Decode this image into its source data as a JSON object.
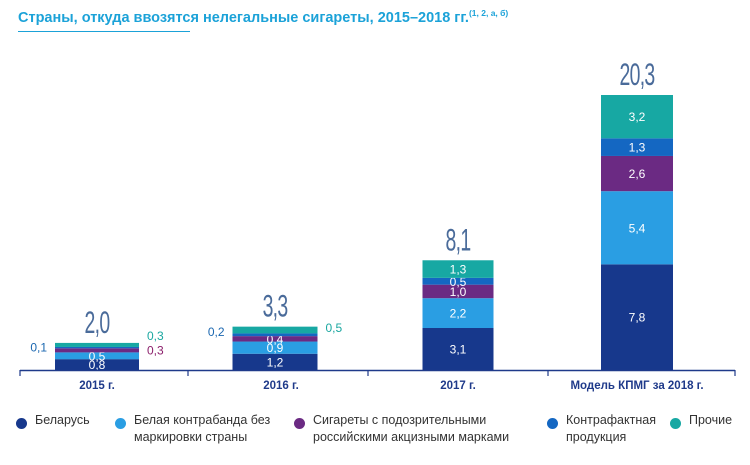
{
  "title": "Страны, откуда ввозятся нелегальные сигареты, 2015–2018 гг.",
  "title_refs": "(1, 2, а, б)",
  "colors": {
    "title": "#1ba2d8",
    "axis": "#1f3a8a",
    "total_label": "#4a6b9a",
    "teal_label": "#1aa7a0",
    "purple_label": "#8b1f6b",
    "blue_label": "#1b67b0"
  },
  "chart_data": {
    "type": "bar",
    "stacked": true,
    "categories": [
      "2015 г.",
      "2016 г.",
      "2017 г.",
      "Модель КПМГ за 2018 г."
    ],
    "totals": [
      "2,0",
      "3,3",
      "8,1",
      "20,3"
    ],
    "total_values": [
      2.0,
      3.3,
      8.1,
      20.3
    ],
    "series": [
      {
        "name": "Беларусь",
        "color": "#17388c",
        "values": [
          0.8,
          1.2,
          3.1,
          7.8
        ],
        "labels": [
          "0,8",
          "1,2",
          "3,1",
          "7,8"
        ]
      },
      {
        "name": "Белая контрабанда без маркировки страны",
        "color": "#2a9ee3",
        "values": [
          0.5,
          0.9,
          2.2,
          5.4
        ],
        "labels": [
          "0,5",
          "0,9",
          "2,2",
          "5,4"
        ]
      },
      {
        "name": "Сигареты с подозрительными российскими акцизными марками",
        "color": "#6b2a83",
        "values": [
          0.3,
          0.4,
          1.0,
          2.6
        ],
        "labels": [
          "0,3",
          "0,4",
          "1,0",
          "2,6"
        ]
      },
      {
        "name": "Контрафактная продукция",
        "color": "#1467c2",
        "values": [
          0.1,
          0.2,
          0.5,
          1.3
        ],
        "labels": [
          "0,1",
          "0,2",
          "0,5",
          "1,3"
        ]
      },
      {
        "name": "Прочие",
        "color": "#17a8a3",
        "values": [
          0.3,
          0.5,
          1.3,
          3.2
        ],
        "labels": [
          "0,3",
          "0,5",
          "1,3",
          "3,2"
        ]
      }
    ],
    "ylim": [
      0,
      20.3
    ],
    "grid": false,
    "legend_position": "bottom"
  },
  "legend": [
    {
      "label": "Беларусь",
      "color": "#17388c"
    },
    {
      "label": "Белая контрабанда без\nмаркировки страны",
      "color": "#2a9ee3"
    },
    {
      "label": "Сигареты с подозрительными\nроссийскими акцизными марками",
      "color": "#6b2a83"
    },
    {
      "label": "Контрафактная\nпродукция",
      "color": "#1467c2"
    },
    {
      "label": "Прочие",
      "color": "#17a8a3"
    }
  ]
}
